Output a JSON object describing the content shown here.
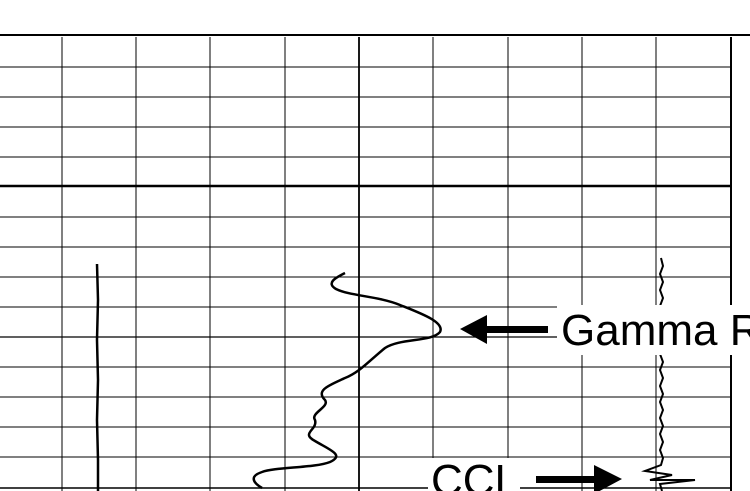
{
  "figure": {
    "annotations": {
      "gamma_label": "Gamma R",
      "ccl_label": "CCL"
    },
    "colors": {
      "background": "#ffffff",
      "ink": "#000000"
    },
    "grid": {
      "visible": true,
      "major_horizontal_divisions": 1,
      "columns": 10
    },
    "curves": [
      "left-track-trace",
      "gamma-ray-curve",
      "ccl-curve"
    ]
  }
}
